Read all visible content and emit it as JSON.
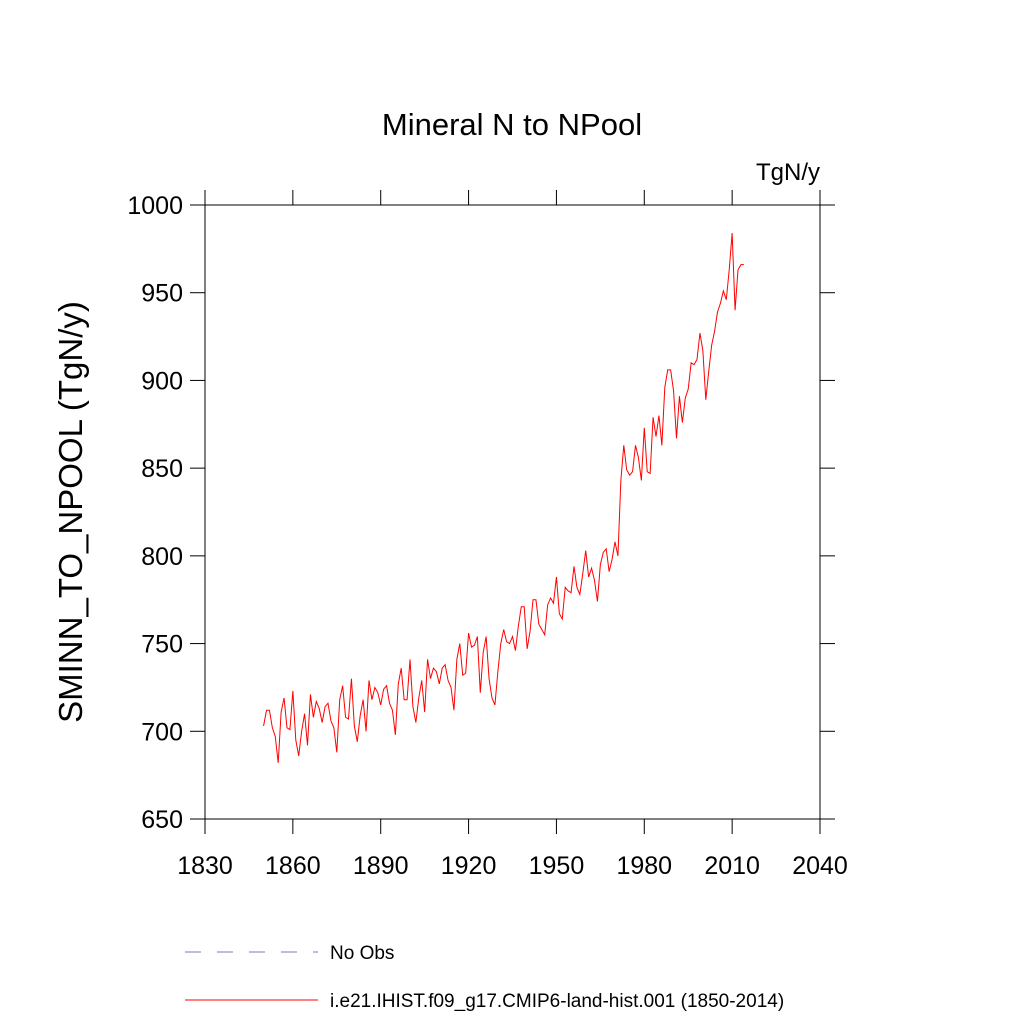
{
  "chart_data": {
    "type": "line",
    "title": "Mineral N to NPool",
    "units_label": "TgN/y",
    "y_label": "SMINN_TO_NPOOL  (TgN/y)",
    "xlim": [
      1830,
      2040
    ],
    "xticks": [
      1830,
      1860,
      1890,
      1920,
      1950,
      1980,
      2010,
      2040
    ],
    "ylim": [
      650,
      1000
    ],
    "yticks": [
      650,
      700,
      750,
      800,
      850,
      900,
      950,
      1000
    ],
    "legend": [
      {
        "name": "No Obs",
        "color": "#7b7bc4",
        "style": "dashed"
      }
    ],
    "x": [
      1850,
      1851,
      1852,
      1853,
      1854,
      1855,
      1856,
      1857,
      1858,
      1859,
      1860,
      1861,
      1862,
      1863,
      1864,
      1865,
      1866,
      1867,
      1868,
      1869,
      1870,
      1871,
      1872,
      1873,
      1874,
      1875,
      1876,
      1877,
      1878,
      1879,
      1880,
      1881,
      1882,
      1883,
      1884,
      1885,
      1886,
      1887,
      1888,
      1889,
      1890,
      1891,
      1892,
      1893,
      1894,
      1895,
      1896,
      1897,
      1898,
      1899,
      1900,
      1901,
      1902,
      1903,
      1904,
      1905,
      1906,
      1907,
      1908,
      1909,
      1910,
      1911,
      1912,
      1913,
      1914,
      1915,
      1916,
      1917,
      1918,
      1919,
      1920,
      1921,
      1922,
      1923,
      1924,
      1925,
      1926,
      1927,
      1928,
      1929,
      1930,
      1931,
      1932,
      1933,
      1934,
      1935,
      1936,
      1937,
      1938,
      1939,
      1940,
      1941,
      1942,
      1943,
      1944,
      1945,
      1946,
      1947,
      1948,
      1949,
      1950,
      1951,
      1952,
      1953,
      1954,
      1955,
      1956,
      1957,
      1958,
      1959,
      1960,
      1961,
      1962,
      1963,
      1964,
      1965,
      1966,
      1967,
      1968,
      1969,
      1970,
      1971,
      1972,
      1973,
      1974,
      1975,
      1976,
      1977,
      1978,
      1979,
      1980,
      1981,
      1982,
      1983,
      1984,
      1985,
      1986,
      1987,
      1988,
      1989,
      1990,
      1991,
      1992,
      1993,
      1994,
      1995,
      1996,
      1997,
      1998,
      1999,
      2000,
      2001,
      2002,
      2003,
      2004,
      2005,
      2006,
      2007,
      2008,
      2009,
      2010,
      2011,
      2012,
      2013,
      2014
    ],
    "series": [
      {
        "name": "i.e21.IHIST.f09_g17.CMIP6-land-hist.001 (1850-2014)",
        "color": "#ff0000",
        "values": [
          703,
          712,
          712,
          702,
          697,
          682,
          711,
          719,
          702,
          701,
          723,
          695,
          686,
          700,
          710,
          692,
          721,
          708,
          717,
          713,
          705,
          714,
          716,
          706,
          702,
          688,
          718,
          726,
          708,
          707,
          730,
          703,
          694,
          709,
          718,
          700,
          729,
          718,
          725,
          722,
          715,
          724,
          726,
          716,
          712,
          698,
          727,
          736,
          718,
          718,
          741,
          714,
          705,
          719,
          729,
          711,
          741,
          730,
          736,
          734,
          727,
          736,
          738,
          729,
          725,
          712,
          741,
          750,
          732,
          733,
          756,
          748,
          749,
          754,
          722,
          745,
          754,
          730,
          719,
          715,
          734,
          750,
          758,
          751,
          750,
          754,
          746,
          760,
          771,
          771,
          747,
          757,
          775,
          775,
          761,
          758,
          755,
          772,
          776,
          773,
          788,
          767,
          764,
          782,
          780,
          779,
          794,
          782,
          778,
          790,
          803,
          788,
          793,
          786,
          774,
          795,
          802,
          804,
          791,
          798,
          808,
          800,
          843,
          863,
          849,
          846,
          848,
          863,
          856,
          843,
          873,
          848,
          847,
          879,
          868,
          880,
          863,
          896,
          906,
          906,
          894,
          867,
          891,
          876,
          890,
          895,
          910,
          909,
          912,
          927,
          917,
          889,
          905,
          920,
          928,
          939,
          944,
          951,
          946,
          963,
          984,
          940,
          963,
          966,
          966
        ]
      }
    ]
  }
}
